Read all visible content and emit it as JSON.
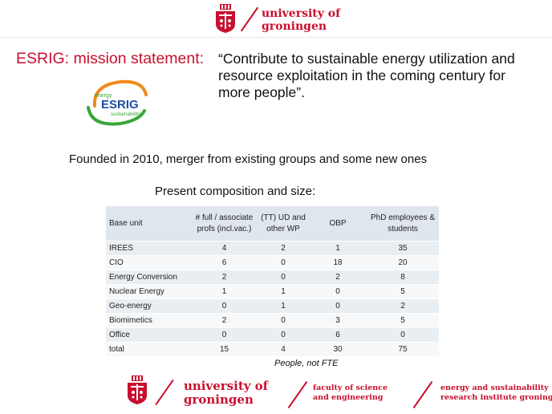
{
  "header": {
    "university_line1": "university of",
    "university_line2": "groningen"
  },
  "slide": {
    "title": "ESRIG: mission statement:",
    "mission": "“Contribute to sustainable energy utilization and resource exploitation in the coming century for more people”.",
    "logo": {
      "text_top": "energy",
      "text_main": "ESRIG",
      "text_bottom": "sustainability"
    },
    "founded": "Founded in 2010, merger from existing groups and some new ones",
    "present_heading": "Present composition and size:",
    "note": "People, not FTE"
  },
  "table": {
    "headers": [
      "Base unit",
      "# full / associate profs (incl.vac.)",
      "(TT) UD and other WP",
      "OBP",
      "PhD employees & students"
    ],
    "rows": [
      [
        "IREES",
        "4",
        "2",
        "1",
        "35"
      ],
      [
        "CIO",
        "6",
        "0",
        "18",
        "20"
      ],
      [
        "Energy Conversion",
        "2",
        "0",
        "2",
        "8"
      ],
      [
        "Nuclear Energy",
        "1",
        "1",
        "0",
        "5"
      ],
      [
        "Geo-energy",
        "0",
        "1",
        "0",
        "2"
      ],
      [
        "Biomimetics",
        "2",
        "0",
        "3",
        "5"
      ],
      [
        "Office",
        "0",
        "0",
        "6",
        "0"
      ],
      [
        "total",
        "15",
        "4",
        "30",
        "75"
      ]
    ]
  },
  "footer": {
    "university_line1": "university of",
    "university_line2": "groningen",
    "faculty_line1": "faculty of science",
    "faculty_line2": "and engineering",
    "institute_line1": "energy and sustainability",
    "institute_line2": "research institute groningen"
  },
  "colors": {
    "brand_red": "#c8102e",
    "logo_orange": "#f08a1c",
    "logo_green": "#3aa63a",
    "logo_blue": "#1f4ea3"
  }
}
